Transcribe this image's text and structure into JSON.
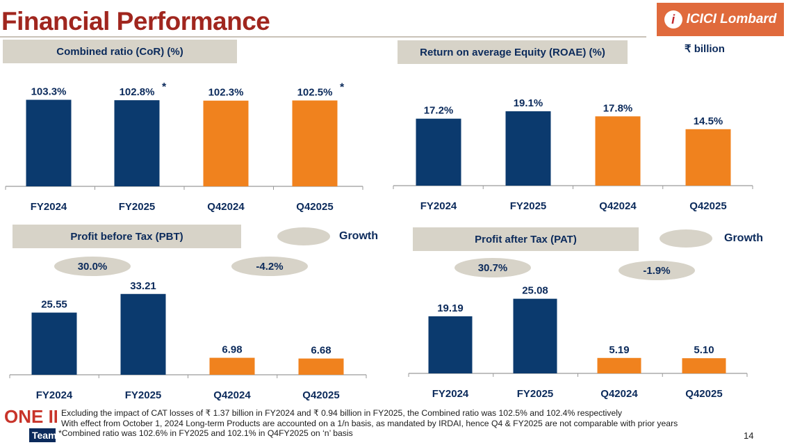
{
  "page": {
    "title": "Financial Performance",
    "unit": "₹ billion",
    "page_number": "14",
    "legend_label": "Growth",
    "logo_text": "ICICI Lombard",
    "team_logo_top": "ONE IL",
    "team_logo_bottom": "Team"
  },
  "colors": {
    "navy": "#0b3a6e",
    "orange": "#f0821e",
    "title": "#a0261e",
    "panel": "#d7d3c8"
  },
  "chart_data": [
    {
      "id": "cor",
      "type": "bar",
      "title": "Combined ratio (CoR) (%)",
      "categories": [
        "FY2024",
        "FY2025",
        "Q42024",
        "Q42025"
      ],
      "values": [
        103.3,
        102.8,
        102.3,
        102.5
      ],
      "labels": [
        "103.3%",
        "102.8%",
        "102.3%",
        "102.5%"
      ],
      "asterisks": [
        "",
        "*",
        "",
        "*"
      ],
      "colors": [
        "navy",
        "navy",
        "orange",
        "orange"
      ],
      "ylim": [
        0,
        110
      ],
      "xlabel": "",
      "ylabel": ""
    },
    {
      "id": "roae",
      "type": "bar",
      "title": "Return on average Equity (ROAE) (%)",
      "categories": [
        "FY2024",
        "FY2025",
        "Q42024",
        "Q42025"
      ],
      "values": [
        17.2,
        19.1,
        17.8,
        14.5
      ],
      "labels": [
        "17.2%",
        "19.1%",
        "17.8%",
        "14.5%"
      ],
      "asterisks": [
        "",
        "",
        "",
        ""
      ],
      "colors": [
        "navy",
        "navy",
        "orange",
        "orange"
      ],
      "ylim": [
        0,
        20
      ],
      "xlabel": "",
      "ylabel": ""
    },
    {
      "id": "pbt",
      "type": "bar",
      "title": "Profit before Tax (PBT)",
      "categories": [
        "FY2024",
        "FY2025",
        "Q42024",
        "Q42025"
      ],
      "values": [
        25.55,
        33.21,
        6.98,
        6.68
      ],
      "labels": [
        "25.55",
        "33.21",
        "6.98",
        "6.68"
      ],
      "asterisks": [
        "",
        "",
        "",
        ""
      ],
      "colors": [
        "navy",
        "navy",
        "orange",
        "orange"
      ],
      "growth": [
        "30.0%",
        "-4.2%"
      ],
      "ylim": [
        0,
        35
      ],
      "xlabel": "",
      "ylabel": ""
    },
    {
      "id": "pat",
      "type": "bar",
      "title": "Profit after Tax (PAT)",
      "categories": [
        "FY2024",
        "FY2025",
        "Q42024",
        "Q42025"
      ],
      "values": [
        19.19,
        25.08,
        5.19,
        5.1
      ],
      "labels": [
        "19.19",
        "25.08",
        "5.19",
        "5.10"
      ],
      "asterisks": [
        "",
        "",
        "",
        ""
      ],
      "colors": [
        "navy",
        "navy",
        "orange",
        "orange"
      ],
      "growth": [
        "30.7%",
        "-1.9%"
      ],
      "ylim": [
        0,
        27
      ],
      "xlabel": "",
      "ylabel": ""
    }
  ],
  "footnotes": [
    "Excluding the impact of CAT losses of ₹ 1.37 billion in FY2024 and ₹ 0.94 billion in FY2025, the Combined ratio was 102.5% and 102.4% respectively",
    "With effect from October 1, 2024 Long-term Products are accounted on a 1/n basis, as mandated by IRDAI, hence Q4 & FY2025 are not comparable with prior years",
    "*Combined ratio was 102.6% in FY2025 and 102.1% in Q4FY2025 on ‘n’ basis"
  ]
}
